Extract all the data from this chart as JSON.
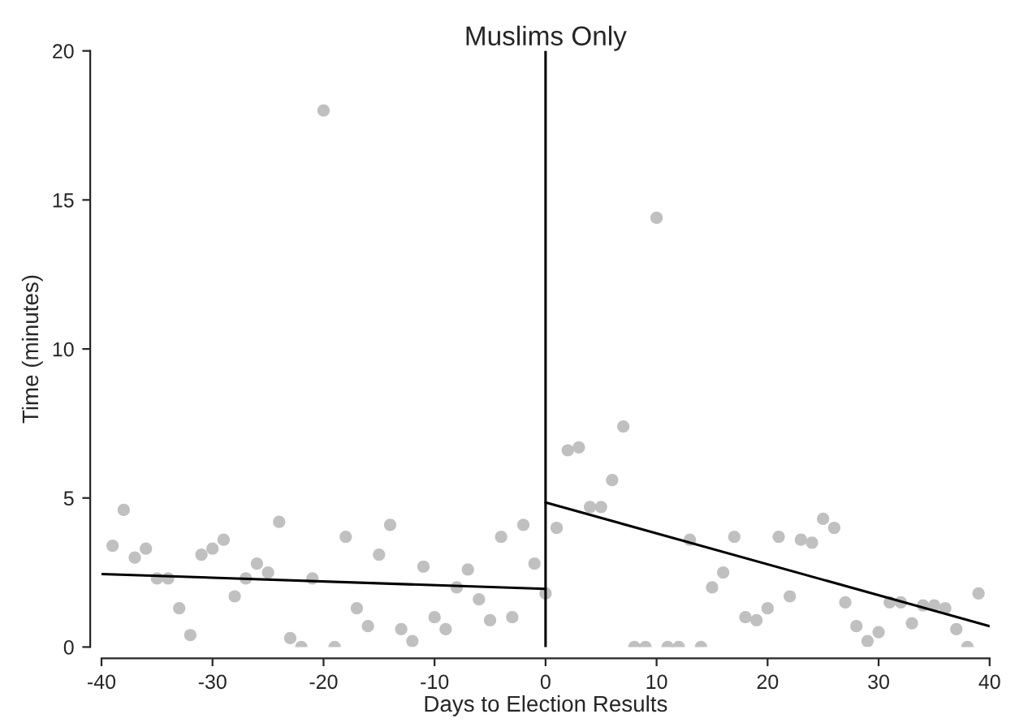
{
  "chart_data": {
    "type": "scatter",
    "title": "Muslims Only",
    "xlabel": "Days to Election Results",
    "ylabel": "Time (minutes)",
    "xlim": [
      -40,
      40
    ],
    "ylim": [
      0,
      20
    ],
    "xticks": [
      -40,
      -30,
      -20,
      -10,
      0,
      10,
      20,
      30,
      40
    ],
    "yticks": [
      0,
      5,
      10,
      15,
      20
    ],
    "grid": false,
    "legend": false,
    "ref_lines": [
      {
        "axis": "x",
        "value": 0,
        "color": "#000000"
      }
    ],
    "series": [
      {
        "color": "#c0c0c0",
        "marker": "circle",
        "x": [
          -39,
          -38,
          -37,
          -36,
          -35,
          -34,
          -33,
          -32,
          -31,
          -30,
          -29,
          -28,
          -27,
          -26,
          -25,
          -24,
          -23,
          -22,
          -21,
          -20,
          -19,
          -18,
          -17,
          -16,
          -15,
          -14,
          -13,
          -12,
          -11,
          -10,
          -9,
          -8,
          -7,
          -6,
          -5,
          -4,
          -3,
          -2,
          -1,
          0,
          1,
          2,
          3,
          4,
          5,
          6,
          7,
          8,
          9,
          10,
          11,
          12,
          13,
          14,
          15,
          16,
          17,
          18,
          19,
          20,
          21,
          22,
          23,
          24,
          25,
          26,
          27,
          28,
          29,
          30,
          31,
          32,
          33,
          34,
          35,
          36,
          37,
          38,
          39
        ],
        "values": [
          3.4,
          4.6,
          3.0,
          3.3,
          2.3,
          2.3,
          1.3,
          0.4,
          3.1,
          3.3,
          3.6,
          1.7,
          2.3,
          2.8,
          2.5,
          4.2,
          0.3,
          0.0,
          2.3,
          18.0,
          0.0,
          3.7,
          1.3,
          0.7,
          3.1,
          4.1,
          0.6,
          0.2,
          2.7,
          1.0,
          0.6,
          2.0,
          2.6,
          1.6,
          0.9,
          3.7,
          1.0,
          4.1,
          2.8,
          1.8,
          4.0,
          6.6,
          6.7,
          4.7,
          4.7,
          5.6,
          7.4,
          0,
          0,
          14.4,
          0,
          0,
          3.6,
          0,
          2.0,
          2.5,
          3.7,
          1.0,
          0.9,
          1.3,
          3.7,
          1.7,
          3.6,
          3.5,
          4.3,
          4.0,
          1.5,
          0.7,
          0.2,
          0.5,
          1.5,
          1.5,
          0.8,
          1.4,
          1.4,
          1.3,
          0.6,
          0.0,
          1.8
        ]
      },
      {
        "type": "line",
        "color": "#000000",
        "x": [
          -40,
          0
        ],
        "values": [
          2.45,
          1.95
        ]
      },
      {
        "type": "line",
        "color": "#000000",
        "x": [
          0,
          40
        ],
        "values": [
          4.85,
          0.7
        ]
      }
    ]
  }
}
